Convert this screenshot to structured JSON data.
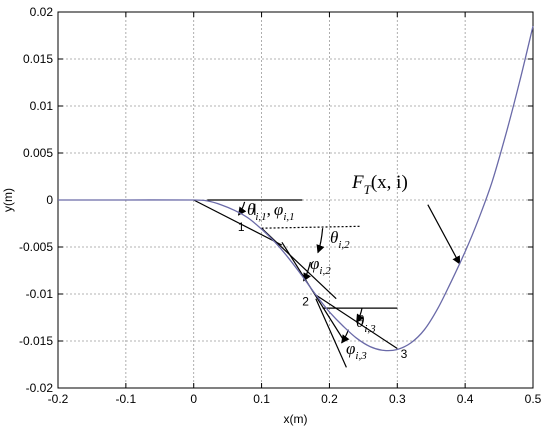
{
  "chart_data": {
    "type": "line",
    "xlabel": "x(m)",
    "ylabel": "y(m)",
    "xlim": [
      -0.2,
      0.5
    ],
    "ylim": [
      -0.02,
      0.02
    ],
    "xticks": [
      "-0.2",
      "-0.1",
      "0",
      "0.1",
      "0.2",
      "0.3",
      "0.4",
      "0.5"
    ],
    "yticks": [
      "-0.02",
      "-0.015",
      "-0.01",
      "-0.005",
      "0",
      "0.005",
      "0.01",
      "0.015",
      "0.02"
    ],
    "grid": true,
    "line_color": "#6a6aa8",
    "series": [
      {
        "x": [
          -0.2,
          -0.1,
          0,
          0.02,
          0.04,
          0.06,
          0.08,
          0.1,
          0.12,
          0.14,
          0.16,
          0.18,
          0.2,
          0.22,
          0.24,
          0.26,
          0.28,
          0.3,
          0.32,
          0.34,
          0.36,
          0.38,
          0.4,
          0.42,
          0.44,
          0.46,
          0.48,
          0.5
        ],
        "y": [
          0,
          0,
          0,
          -0.0001,
          -0.0005,
          -0.0011,
          -0.0019,
          -0.0031,
          -0.0045,
          -0.0062,
          -0.0081,
          -0.0101,
          -0.0119,
          -0.0134,
          -0.0147,
          -0.0156,
          -0.016,
          -0.0159,
          -0.0152,
          -0.0138,
          -0.0115,
          -0.0086,
          -0.0055,
          -0.002,
          0.002,
          0.007,
          0.0125,
          0.0185
        ]
      }
    ],
    "points": [
      {
        "label": "1",
        "x": 0.085,
        "y": -0.0022
      },
      {
        "label": "2",
        "x": 0.18,
        "y": -0.0101
      },
      {
        "label": "3",
        "x": 0.3,
        "y": -0.0159
      }
    ],
    "annotations": {
      "curve_label": {
        "main": "F",
        "sub": "T",
        "args": "(x, i)"
      },
      "angle_labels": [
        {
          "main": "θ",
          "sub": "i,1",
          "sep": ",",
          "main2": "φ",
          "sub2": "i,1"
        },
        {
          "main": "θ",
          "sub": "i,2"
        },
        {
          "main": "φ",
          "sub": "i,2"
        },
        {
          "main": "θ",
          "sub": "i,3"
        },
        {
          "main": "φ",
          "sub": "i,3"
        }
      ]
    }
  }
}
